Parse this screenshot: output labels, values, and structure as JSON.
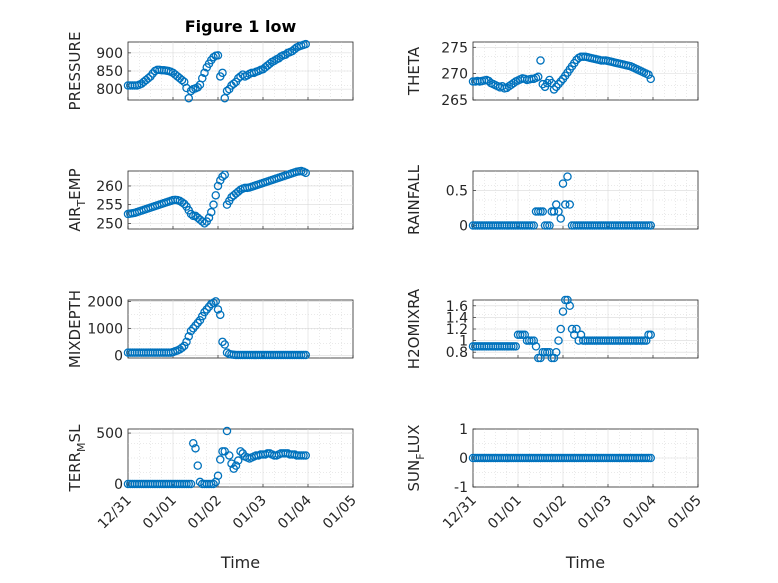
{
  "figure_title": "Figure 1 low",
  "colors": {
    "marker": "#0072bd",
    "axes": "#262626",
    "grid": "#d9d9d9"
  },
  "chart_data": [
    {
      "type": "scatter",
      "ylabel": "PRESSURE",
      "title": "Figure 1 low",
      "xlim": [
        0,
        5
      ],
      "ylim": [
        770,
        930
      ],
      "yticks": [
        800,
        850,
        900
      ],
      "grid": true,
      "xticklabels": [],
      "x": [
        0.0,
        0.05,
        0.1,
        0.15,
        0.2,
        0.25,
        0.3,
        0.35,
        0.4,
        0.45,
        0.5,
        0.55,
        0.6,
        0.65,
        0.7,
        0.75,
        0.8,
        0.85,
        0.9,
        0.95,
        1.0,
        1.05,
        1.1,
        1.15,
        1.2,
        1.25,
        1.3,
        1.35,
        1.4,
        1.45,
        1.5,
        1.55,
        1.6,
        1.65,
        1.7,
        1.75,
        1.8,
        1.85,
        1.9,
        1.95,
        2.0,
        2.05,
        2.1,
        2.15,
        2.2,
        2.25,
        2.3,
        2.35,
        2.4,
        2.45,
        2.5,
        2.55,
        2.6,
        2.65,
        2.7,
        2.75,
        2.8,
        2.85,
        2.9,
        2.95,
        3.0,
        3.05,
        3.1,
        3.15,
        3.2,
        3.25,
        3.3,
        3.35,
        3.4,
        3.45,
        3.5,
        3.55,
        3.6,
        3.65,
        3.7,
        3.75,
        3.8,
        3.85,
        3.9,
        3.95
      ],
      "y": [
        810,
        810,
        810,
        810,
        810,
        812,
        815,
        820,
        825,
        830,
        835,
        843,
        850,
        853,
        853,
        852,
        852,
        851,
        850,
        848,
        845,
        840,
        835,
        830,
        825,
        820,
        803,
        775,
        795,
        800,
        802,
        805,
        812,
        830,
        845,
        860,
        870,
        880,
        888,
        892,
        893,
        835,
        845,
        775,
        795,
        800,
        810,
        815,
        820,
        830,
        835,
        840,
        835,
        838,
        842,
        845,
        845,
        848,
        850,
        853,
        855,
        860,
        865,
        870,
        875,
        878,
        882,
        885,
        890,
        893,
        895,
        900,
        902,
        905,
        910,
        915,
        918,
        920,
        922,
        924
      ]
    },
    {
      "type": "scatter",
      "ylabel": "THETA",
      "xlim": [
        0,
        5
      ],
      "ylim": [
        265,
        276
      ],
      "yticks": [
        265,
        270,
        275
      ],
      "grid": true,
      "xticklabels": [],
      "x": [
        0.0,
        0.05,
        0.1,
        0.15,
        0.2,
        0.25,
        0.3,
        0.35,
        0.4,
        0.45,
        0.5,
        0.55,
        0.6,
        0.65,
        0.7,
        0.75,
        0.8,
        0.85,
        0.9,
        0.95,
        1.0,
        1.05,
        1.1,
        1.15,
        1.2,
        1.25,
        1.3,
        1.35,
        1.4,
        1.45,
        1.5,
        1.55,
        1.6,
        1.65,
        1.7,
        1.75,
        1.8,
        1.85,
        1.9,
        1.95,
        2.0,
        2.05,
        2.1,
        2.15,
        2.2,
        2.25,
        2.3,
        2.35,
        2.4,
        2.45,
        2.5,
        2.55,
        2.6,
        2.65,
        2.7,
        2.75,
        2.8,
        2.85,
        2.9,
        2.95,
        3.0,
        3.05,
        3.1,
        3.15,
        3.2,
        3.25,
        3.3,
        3.35,
        3.4,
        3.45,
        3.5,
        3.55,
        3.6,
        3.65,
        3.7,
        3.75,
        3.8,
        3.85,
        3.9,
        3.95
      ],
      "y": [
        268.5,
        268.5,
        268.6,
        268.5,
        268.6,
        268.7,
        268.8,
        268.6,
        268.2,
        268.0,
        267.8,
        267.6,
        267.4,
        267.6,
        267.2,
        267.3,
        267.6,
        267.9,
        268.2,
        268.5,
        268.7,
        268.9,
        269.1,
        269.0,
        268.8,
        268.9,
        269.0,
        269.0,
        269.2,
        269.4,
        272.5,
        268.0,
        267.5,
        268.2,
        268.8,
        268.2,
        267.0,
        267.5,
        268.0,
        268.5,
        269.0,
        269.6,
        270.2,
        270.8,
        271.4,
        272.0,
        272.6,
        273.0,
        273.2,
        273.2,
        273.2,
        273.1,
        273.0,
        272.9,
        272.8,
        272.7,
        272.6,
        272.5,
        272.5,
        272.5,
        272.4,
        272.3,
        272.2,
        272.1,
        272.0,
        271.9,
        271.8,
        271.7,
        271.6,
        271.5,
        271.4,
        271.2,
        271.0,
        270.8,
        270.6,
        270.4,
        270.2,
        270.0,
        269.8,
        269.0
      ]
    },
    {
      "type": "scatter",
      "ylabel": "AIR_TEMP",
      "xlim": [
        0,
        5
      ],
      "ylim": [
        248.5,
        264
      ],
      "yticks": [
        250,
        255,
        260
      ],
      "grid": true,
      "xticklabels": [],
      "x": [
        0.0,
        0.05,
        0.1,
        0.15,
        0.2,
        0.25,
        0.3,
        0.35,
        0.4,
        0.45,
        0.5,
        0.55,
        0.6,
        0.65,
        0.7,
        0.75,
        0.8,
        0.85,
        0.9,
        0.95,
        1.0,
        1.05,
        1.1,
        1.15,
        1.2,
        1.25,
        1.3,
        1.35,
        1.4,
        1.45,
        1.5,
        1.55,
        1.6,
        1.65,
        1.7,
        1.75,
        1.8,
        1.85,
        1.9,
        1.95,
        2.0,
        2.05,
        2.1,
        2.15,
        2.2,
        2.25,
        2.3,
        2.35,
        2.4,
        2.45,
        2.5,
        2.55,
        2.6,
        2.65,
        2.7,
        2.75,
        2.8,
        2.85,
        2.9,
        2.95,
        3.0,
        3.05,
        3.1,
        3.15,
        3.2,
        3.25,
        3.3,
        3.35,
        3.4,
        3.45,
        3.5,
        3.55,
        3.6,
        3.65,
        3.7,
        3.75,
        3.8,
        3.85,
        3.9,
        3.95
      ],
      "y": [
        252.5,
        252.6,
        252.7,
        252.8,
        253.0,
        253.2,
        253.4,
        253.6,
        253.8,
        254.0,
        254.2,
        254.4,
        254.6,
        254.8,
        255.0,
        255.2,
        255.4,
        255.6,
        255.8,
        256.0,
        256.2,
        256.3,
        256.2,
        256.0,
        255.6,
        255.2,
        254.5,
        253.5,
        252.5,
        252.0,
        252.0,
        251.5,
        251.0,
        250.5,
        250.0,
        250.5,
        251.5,
        253.0,
        255.0,
        257.5,
        260.0,
        261.5,
        262.5,
        263.0,
        255.0,
        256.0,
        257.0,
        257.5,
        258.0,
        258.5,
        259.0,
        259.3,
        259.5,
        259.5,
        259.6,
        259.8,
        260.0,
        260.2,
        260.4,
        260.6,
        260.8,
        261.0,
        261.2,
        261.4,
        261.6,
        261.8,
        262.0,
        262.2,
        262.4,
        262.6,
        262.8,
        263.0,
        263.2,
        263.4,
        263.6,
        263.8,
        263.9,
        264.0,
        263.8,
        263.5
      ]
    },
    {
      "type": "scatter",
      "ylabel": "RAINFALL",
      "xlim": [
        0,
        5
      ],
      "ylim": [
        -0.05,
        0.78
      ],
      "yticks": [
        0,
        0.5
      ],
      "grid": true,
      "xticklabels": [],
      "x": [
        0.0,
        0.05,
        0.1,
        0.15,
        0.2,
        0.25,
        0.3,
        0.35,
        0.4,
        0.45,
        0.5,
        0.55,
        0.6,
        0.65,
        0.7,
        0.75,
        0.8,
        0.85,
        0.9,
        0.95,
        1.0,
        1.05,
        1.1,
        1.15,
        1.2,
        1.25,
        1.3,
        1.35,
        1.4,
        1.45,
        1.5,
        1.55,
        1.6,
        1.65,
        1.7,
        1.75,
        1.8,
        1.85,
        1.9,
        1.95,
        2.0,
        2.05,
        2.1,
        2.15,
        2.2,
        2.25,
        2.3,
        2.35,
        2.4,
        2.45,
        2.5,
        2.55,
        2.6,
        2.65,
        2.7,
        2.75,
        2.8,
        2.85,
        2.9,
        2.95,
        3.0,
        3.05,
        3.1,
        3.15,
        3.2,
        3.25,
        3.3,
        3.35,
        3.4,
        3.45,
        3.5,
        3.55,
        3.6,
        3.65,
        3.7,
        3.75,
        3.8,
        3.85,
        3.9,
        3.95
      ],
      "y": [
        0,
        0,
        0,
        0,
        0,
        0,
        0,
        0,
        0,
        0,
        0,
        0,
        0,
        0,
        0,
        0,
        0,
        0,
        0,
        0,
        0,
        0,
        0,
        0,
        0,
        0,
        0,
        0,
        0.2,
        0.2,
        0.2,
        0.2,
        0,
        0,
        0,
        0.2,
        0.2,
        0.3,
        0.2,
        0.1,
        0.6,
        0.3,
        0.7,
        0.3,
        0,
        0,
        0,
        0,
        0,
        0,
        0,
        0,
        0,
        0,
        0,
        0,
        0,
        0,
        0,
        0,
        0,
        0,
        0,
        0,
        0,
        0,
        0,
        0,
        0,
        0,
        0,
        0,
        0,
        0,
        0,
        0,
        0,
        0,
        0,
        0
      ]
    },
    {
      "type": "scatter",
      "ylabel": "MIXDEPTH",
      "xlim": [
        0,
        5
      ],
      "ylim": [
        -100,
        2050
      ],
      "yticks": [
        0,
        1000,
        2000
      ],
      "grid": true,
      "xticklabels": [],
      "x": [
        0.0,
        0.05,
        0.1,
        0.15,
        0.2,
        0.25,
        0.3,
        0.35,
        0.4,
        0.45,
        0.5,
        0.55,
        0.6,
        0.65,
        0.7,
        0.75,
        0.8,
        0.85,
        0.9,
        0.95,
        1.0,
        1.05,
        1.1,
        1.15,
        1.2,
        1.25,
        1.3,
        1.35,
        1.4,
        1.45,
        1.5,
        1.55,
        1.6,
        1.65,
        1.7,
        1.75,
        1.8,
        1.85,
        1.9,
        1.95,
        2.0,
        2.05,
        2.1,
        2.15,
        2.2,
        2.25,
        2.3,
        2.35,
        2.4,
        2.45,
        2.5,
        2.55,
        2.6,
        2.65,
        2.7,
        2.75,
        2.8,
        2.85,
        2.9,
        2.95,
        3.0,
        3.05,
        3.1,
        3.15,
        3.2,
        3.25,
        3.3,
        3.35,
        3.4,
        3.45,
        3.5,
        3.55,
        3.6,
        3.65,
        3.7,
        3.75,
        3.8,
        3.85,
        3.9,
        3.95
      ],
      "y": [
        100,
        100,
        100,
        100,
        100,
        100,
        100,
        100,
        100,
        100,
        100,
        100,
        100,
        100,
        100,
        100,
        100,
        100,
        100,
        100,
        120,
        150,
        180,
        220,
        280,
        350,
        500,
        700,
        900,
        1000,
        1100,
        1200,
        1300,
        1450,
        1600,
        1700,
        1800,
        1900,
        1950,
        2000,
        1700,
        1500,
        500,
        400,
        100,
        50,
        30,
        20,
        10,
        10,
        10,
        10,
        10,
        10,
        10,
        10,
        10,
        10,
        10,
        10,
        10,
        10,
        10,
        10,
        10,
        10,
        10,
        10,
        10,
        10,
        10,
        10,
        10,
        10,
        10,
        10,
        10,
        10,
        10,
        10
      ]
    },
    {
      "type": "scatter",
      "ylabel": "H2OMIXRA",
      "xlim": [
        0,
        5
      ],
      "ylim": [
        0.7,
        1.7
      ],
      "yticks": [
        0.8,
        1,
        1.2,
        1.4,
        1.6
      ],
      "grid": true,
      "xticklabels": [],
      "x": [
        0.0,
        0.05,
        0.1,
        0.15,
        0.2,
        0.25,
        0.3,
        0.35,
        0.4,
        0.45,
        0.5,
        0.55,
        0.6,
        0.65,
        0.7,
        0.75,
        0.8,
        0.85,
        0.9,
        0.95,
        1.0,
        1.05,
        1.1,
        1.15,
        1.2,
        1.25,
        1.3,
        1.35,
        1.4,
        1.45,
        1.5,
        1.55,
        1.6,
        1.65,
        1.7,
        1.75,
        1.8,
        1.85,
        1.9,
        1.95,
        2.0,
        2.05,
        2.1,
        2.15,
        2.2,
        2.25,
        2.3,
        2.35,
        2.4,
        2.45,
        2.5,
        2.55,
        2.6,
        2.65,
        2.7,
        2.75,
        2.8,
        2.85,
        2.9,
        2.95,
        3.0,
        3.05,
        3.1,
        3.15,
        3.2,
        3.25,
        3.3,
        3.35,
        3.4,
        3.45,
        3.5,
        3.55,
        3.6,
        3.65,
        3.7,
        3.75,
        3.8,
        3.85,
        3.9,
        3.95
      ],
      "y": [
        0.9,
        0.9,
        0.9,
        0.9,
        0.9,
        0.9,
        0.9,
        0.9,
        0.9,
        0.9,
        0.9,
        0.9,
        0.9,
        0.9,
        0.9,
        0.9,
        0.9,
        0.9,
        0.9,
        0.9,
        1.1,
        1.1,
        1.1,
        1.1,
        1.0,
        1.0,
        1.0,
        1.0,
        0.9,
        0.7,
        0.7,
        0.8,
        0.8,
        0.8,
        0.8,
        0.7,
        0.7,
        0.8,
        1.0,
        1.2,
        1.5,
        1.7,
        1.7,
        1.6,
        1.2,
        1.1,
        1.2,
        1.0,
        1.1,
        1.0,
        1.0,
        1.0,
        1.0,
        1.0,
        1.0,
        1.0,
        1.0,
        1.0,
        1.0,
        1.0,
        1.0,
        1.0,
        1.0,
        1.0,
        1.0,
        1.0,
        1.0,
        1.0,
        1.0,
        1.0,
        1.0,
        1.0,
        1.0,
        1.0,
        1.0,
        1.0,
        1.0,
        1.0,
        1.1,
        1.1
      ]
    },
    {
      "type": "scatter",
      "ylabel": "TERR_MSL",
      "xlim": [
        0,
        5
      ],
      "ylim": [
        -30,
        540
      ],
      "yticks": [
        0,
        500
      ],
      "grid": true,
      "xticklabels": [
        "12/31",
        "01/01",
        "01/02",
        "01/03",
        "01/04",
        "01/05"
      ],
      "xlabel": "Time",
      "x": [
        0.0,
        0.05,
        0.1,
        0.15,
        0.2,
        0.25,
        0.3,
        0.35,
        0.4,
        0.45,
        0.5,
        0.55,
        0.6,
        0.65,
        0.7,
        0.75,
        0.8,
        0.85,
        0.9,
        0.95,
        1.0,
        1.05,
        1.1,
        1.15,
        1.2,
        1.25,
        1.3,
        1.35,
        1.4,
        1.45,
        1.5,
        1.55,
        1.6,
        1.65,
        1.7,
        1.75,
        1.8,
        1.85,
        1.9,
        1.95,
        2.0,
        2.05,
        2.1,
        2.15,
        2.2,
        2.25,
        2.3,
        2.35,
        2.4,
        2.45,
        2.5,
        2.55,
        2.6,
        2.65,
        2.7,
        2.75,
        2.8,
        2.85,
        2.9,
        2.95,
        3.0,
        3.05,
        3.1,
        3.15,
        3.2,
        3.25,
        3.3,
        3.35,
        3.4,
        3.45,
        3.5,
        3.55,
        3.6,
        3.65,
        3.7,
        3.75,
        3.8,
        3.85,
        3.9,
        3.95
      ],
      "y": [
        0,
        0,
        0,
        0,
        0,
        0,
        0,
        0,
        0,
        0,
        0,
        0,
        0,
        0,
        0,
        0,
        0,
        0,
        0,
        0,
        0,
        0,
        0,
        0,
        0,
        0,
        0,
        0,
        0,
        400,
        350,
        180,
        20,
        0,
        0,
        0,
        0,
        0,
        0,
        20,
        80,
        240,
        320,
        320,
        520,
        280,
        200,
        150,
        180,
        230,
        320,
        300,
        270,
        260,
        250,
        260,
        270,
        280,
        280,
        290,
        290,
        290,
        300,
        300,
        290,
        280,
        280,
        290,
        300,
        300,
        300,
        300,
        290,
        290,
        290,
        280,
        280,
        280,
        280,
        280
      ]
    },
    {
      "type": "scatter",
      "ylabel": "SUN_FLUX",
      "xlim": [
        0,
        5
      ],
      "ylim": [
        -1,
        1
      ],
      "yticks": [
        -1,
        0,
        1
      ],
      "grid": true,
      "xticklabels": [
        "12/31",
        "01/01",
        "01/02",
        "01/03",
        "01/04",
        "01/05"
      ],
      "xlabel": "Time",
      "x": [
        0.0,
        0.05,
        0.1,
        0.15,
        0.2,
        0.25,
        0.3,
        0.35,
        0.4,
        0.45,
        0.5,
        0.55,
        0.6,
        0.65,
        0.7,
        0.75,
        0.8,
        0.85,
        0.9,
        0.95,
        1.0,
        1.05,
        1.1,
        1.15,
        1.2,
        1.25,
        1.3,
        1.35,
        1.4,
        1.45,
        1.5,
        1.55,
        1.6,
        1.65,
        1.7,
        1.75,
        1.8,
        1.85,
        1.9,
        1.95,
        2.0,
        2.05,
        2.1,
        2.15,
        2.2,
        2.25,
        2.3,
        2.35,
        2.4,
        2.45,
        2.5,
        2.55,
        2.6,
        2.65,
        2.7,
        2.75,
        2.8,
        2.85,
        2.9,
        2.95,
        3.0,
        3.05,
        3.1,
        3.15,
        3.2,
        3.25,
        3.3,
        3.35,
        3.4,
        3.45,
        3.5,
        3.55,
        3.6,
        3.65,
        3.7,
        3.75,
        3.8,
        3.85,
        3.9,
        3.95
      ],
      "y": [
        0,
        0,
        0,
        0,
        0,
        0,
        0,
        0,
        0,
        0,
        0,
        0,
        0,
        0,
        0,
        0,
        0,
        0,
        0,
        0,
        0,
        0,
        0,
        0,
        0,
        0,
        0,
        0,
        0,
        0,
        0,
        0,
        0,
        0,
        0,
        0,
        0,
        0,
        0,
        0,
        0,
        0,
        0,
        0,
        0,
        0,
        0,
        0,
        0,
        0,
        0,
        0,
        0,
        0,
        0,
        0,
        0,
        0,
        0,
        0,
        0,
        0,
        0,
        0,
        0,
        0,
        0,
        0,
        0,
        0,
        0,
        0,
        0,
        0,
        0,
        0,
        0,
        0,
        0,
        0
      ]
    }
  ]
}
